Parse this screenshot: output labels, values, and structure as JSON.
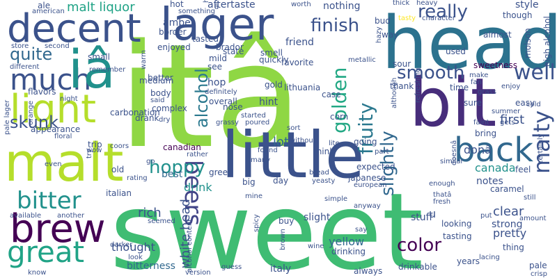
{
  "palette": {
    "dark_purple": "#440154",
    "indigo": "#3b528b",
    "blue": "#31688e",
    "teal": "#21918c",
    "sea_green": "#35b779",
    "light_green": "#5ec962",
    "lime": "#b5de2b",
    "yellow": "#fde725"
  },
  "words": {
    "sweet": "sweet",
    "ita": "itâ",
    "head": "head",
    "bit": "bit",
    "little": "little",
    "malt": "malt",
    "lager": "lager",
    "decent": "decent",
    "light": "light",
    "brew": "brew",
    "back": "back",
    "great": "great",
    "much": "much",
    "ia": "iâ",
    "beers": "beers",
    "bitter": "bitter",
    "malty": "malty",
    "well": "well",
    "hoppy": "hoppy",
    "smooth": "smooth",
    "color": "color",
    "fruity": "fruity",
    "finish": "finish",
    "golden": "golden",
    "really": "really",
    "slightly": "slightly",
    "quite": "quite",
    "skunk": "skunk",
    "alcohol": "alcohol",
    "white_head": "white head",
    "malt_liquor": "malt liquor",
    "carbonation": "carbonation",
    "drink": "drink",
    "canada": "canada",
    "don": "donâ",
    "lot": "lot",
    "rich": "rich",
    "thought": "thought",
    "pretty": "pretty",
    "yellow": "yellow",
    "bitterness": "bitterness",
    "first": "first",
    "clear": "clear",
    "strong": "strong",
    "amber": "amber",
    "friend": "friend",
    "hint": "hint",
    "best": "best",
    "notes": "notes",
    "aftertaste": "aftertaste",
    "nothing": "nothing",
    "hot": "hot",
    "style": "style",
    "sweetness": "sweetness",
    "canadian": "canadian",
    "caramel": "caramel",
    "pale": "pale",
    "bring": "bring",
    "expected": "expected",
    "feel": "feel",
    "years": "years",
    "better": "better",
    "complex": "complex",
    "lithuania": "lithuania",
    "gold": "gold",
    "case": "case",
    "favorite": "favorite",
    "sour": "sour",
    "hop": "hop",
    "see": "see",
    "mild": "mild",
    "overall": "overall",
    "slight": "slight",
    "stuff": "stuff",
    "looking": "looking",
    "tasting": "tasting",
    "thing": "thing",
    "u": "u",
    "italian": "italian",
    "old": "old",
    "day": "day",
    "big": "big",
    "buy": "buy",
    "green": "green",
    "going": "going",
    "think": "think",
    "sure": "sure",
    "easy": "easy",
    "time": "time",
    "thank": "thank",
    "way": "way",
    "bud": "bud",
    "almost": "almost",
    "used": "used",
    "border": "border",
    "tasted": "tasted",
    "enjoyed": "enjoyed",
    "brador": "brador",
    "state": "state",
    "smell": "smell",
    "quickly": "quickly",
    "metallic": "metallic",
    "molson": "molson",
    "high_alcohol": "high alcohol",
    "thick": "thick",
    "heavy": "heavy",
    "tasty": "tasty",
    "character": "character",
    "though": "though",
    "ale": "ale",
    "american": "american",
    "something": "something",
    "hard": "hard",
    "a_char": "â",
    "worth": "worth",
    "store": "store",
    "second": "second",
    "different": "different",
    "small": "small",
    "remember": "remember",
    "warm": "warm",
    "medium": "medium",
    "body": "body",
    "said": "said",
    "dry": "dry",
    "drank": "drank",
    "nose": "nose",
    "definitely": "definitely",
    "grassy": "grassy",
    "started": "started",
    "poured": "poured",
    "sort": "sort",
    "corn": "corn",
    "although": "although",
    "refreshing": "refreshing",
    "faint": "faint",
    "gets": "gets",
    "summer": "summer",
    "cold": "cold",
    "grass": "grass",
    "enjoy": "enjoy",
    "fan": "fan",
    "make": "make",
    "hazy": "hazy",
    "pale_lager": "pale lager",
    "flavors": "flavors",
    "night": "night",
    "orange": "orange",
    "floral": "floral",
    "appearance": "appearance",
    "trip": "trip",
    "wow": "wow",
    "coors": "coors",
    "go": "go",
    "rather": "rather",
    "found": "found",
    "without": "without",
    "lite": "lite",
    "part": "part",
    "similar": "similar",
    "bread": "bread",
    "many": "many",
    "yeasty": "yeasty",
    "japanese": "japanese",
    "european": "european",
    "try": "try",
    "rating": "rating",
    "even": "even",
    "available": "available",
    "another": "another",
    "spicy": "spicy",
    "darker": "darker",
    "mine": "mine",
    "seemed": "seemed",
    "look": "look",
    "alcohol_content": "alcohol content",
    "version": "version",
    "guess": "guess",
    "italy": "italy",
    "wine": "wine",
    "brown": "brown",
    "drinking": "drinking",
    "simple": "simple",
    "anyway": "anyway",
    "say": "say",
    "always": "always",
    "drinkable": "drinkable",
    "fresh": "fresh",
    "that": "thatâ",
    "put": "put",
    "amount": "amount",
    "lacing": "lacing",
    "doesn": "doesnâ",
    "enough": "enough",
    "still": "still",
    "certainly": "certainly",
    "crisp": "crisp",
    "know": "know"
  }
}
